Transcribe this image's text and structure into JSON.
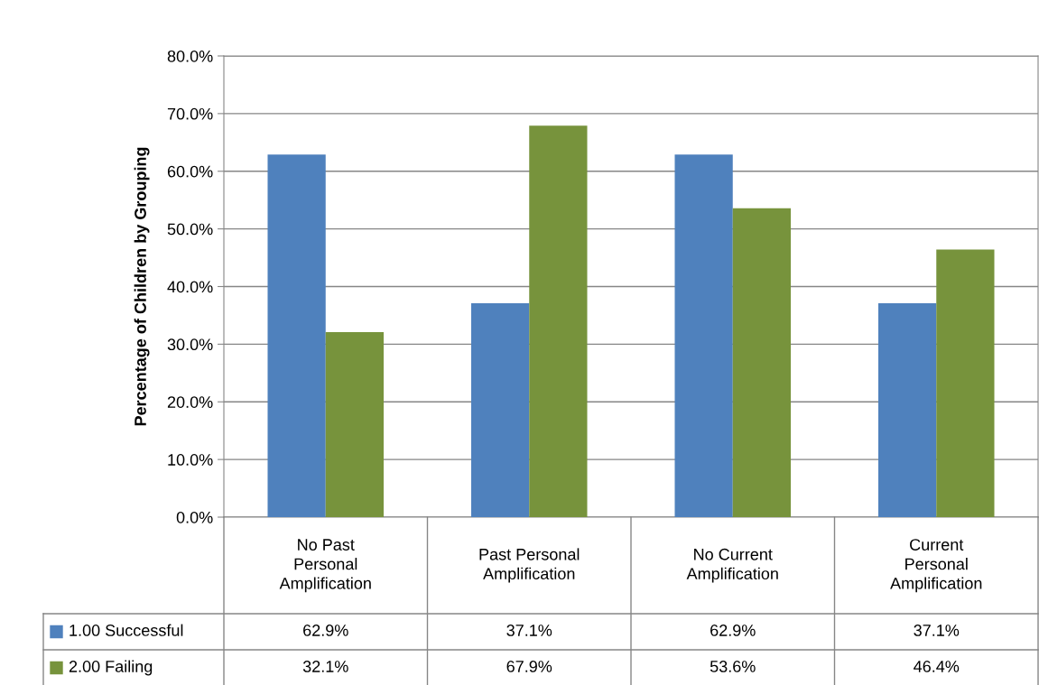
{
  "chart_data": {
    "type": "bar",
    "ylabel": "Percentage of Children by Grouping",
    "categories": [
      "No Past\nPersonal\nAmplification",
      "Past Personal\nAmplification",
      "No Current\nAmplification",
      "Current\nPersonal\nAmplification"
    ],
    "series": [
      {
        "name": "1.00 Successful",
        "color": "#4f81bd",
        "values": [
          62.9,
          37.1,
          62.9,
          37.1
        ],
        "value_labels": [
          "62.9%",
          "37.1%",
          "62.9%",
          "37.1%"
        ]
      },
      {
        "name": "2.00 Failing",
        "color": "#77933c",
        "values": [
          32.1,
          67.9,
          53.6,
          46.4
        ],
        "value_labels": [
          "32.1%",
          "67.9%",
          "53.6%",
          "46.4%"
        ]
      }
    ],
    "ylim": [
      0,
      80
    ],
    "yticks": [
      {
        "value": 0,
        "label": "0.0%"
      },
      {
        "value": 10,
        "label": "10.0%"
      },
      {
        "value": 20,
        "label": "20.0%"
      },
      {
        "value": 30,
        "label": "30.0%"
      },
      {
        "value": 40,
        "label": "40.0%"
      },
      {
        "value": 50,
        "label": "50.0%"
      },
      {
        "value": 60,
        "label": "60.0%"
      },
      {
        "value": 70,
        "label": "70.0%"
      },
      {
        "value": 80,
        "label": "80.0%"
      }
    ],
    "grid": "y",
    "legend": "bottom"
  }
}
